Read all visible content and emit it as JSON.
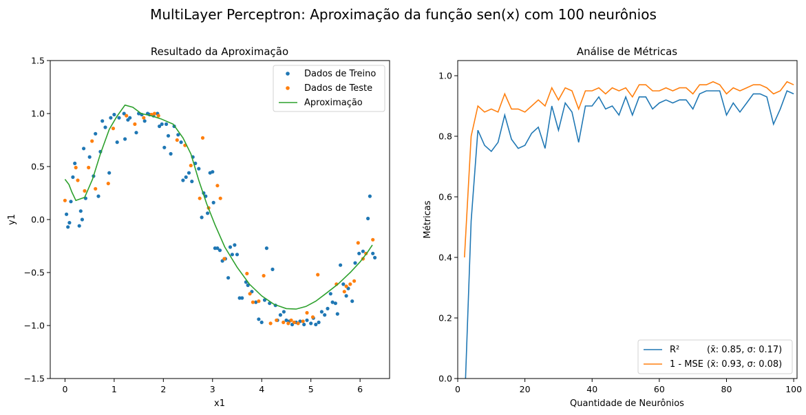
{
  "suptitle": "MultiLayer Perceptron: Aproximação da função sen(x) com 100 neurônios",
  "colors": {
    "train": "#1f77b4",
    "test": "#ff7f0e",
    "approx": "#2ca02c",
    "r2": "#1f77b4",
    "mse": "#ff7f0e"
  },
  "chart_data": [
    {
      "type": "scatter",
      "title": "Resultado da Aproximação",
      "xlabel": "x1",
      "ylabel": "y1",
      "xlim": [
        -0.3,
        6.6
      ],
      "ylim": [
        -1.5,
        1.5
      ],
      "xticks": [
        0,
        1,
        2,
        3,
        4,
        5,
        6
      ],
      "yticks": [
        -1.5,
        -1.0,
        -0.5,
        0.0,
        0.5,
        1.0,
        1.5
      ],
      "xtick_labels": [
        "0",
        "1",
        "2",
        "3",
        "4",
        "5",
        "6"
      ],
      "ytick_labels": [
        "−1.5",
        "−1.0",
        "−0.5",
        "0.0",
        "0.5",
        "1.0",
        "1.5"
      ],
      "legend_position": "top-right",
      "series": [
        {
          "name": "Dados de Treino",
          "kind": "scatter",
          "points": [
            [
              0.03,
              0.05
            ],
            [
              0.06,
              -0.07
            ],
            [
              0.09,
              -0.03
            ],
            [
              0.12,
              0.17
            ],
            [
              0.16,
              0.4
            ],
            [
              0.2,
              0.53
            ],
            [
              0.29,
              -0.06
            ],
            [
              0.32,
              0.08
            ],
            [
              0.35,
              0.0
            ],
            [
              0.38,
              0.67
            ],
            [
              0.42,
              0.2
            ],
            [
              0.5,
              0.59
            ],
            [
              0.58,
              0.41
            ],
            [
              0.62,
              0.81
            ],
            [
              0.68,
              0.22
            ],
            [
              0.72,
              0.64
            ],
            [
              0.76,
              0.93
            ],
            [
              0.82,
              0.87
            ],
            [
              0.9,
              0.44
            ],
            [
              0.93,
              0.96
            ],
            [
              1.0,
              0.99
            ],
            [
              1.06,
              0.73
            ],
            [
              1.1,
              0.96
            ],
            [
              1.2,
              1.0
            ],
            [
              1.22,
              0.76
            ],
            [
              1.28,
              0.94
            ],
            [
              1.32,
              0.96
            ],
            [
              1.45,
              0.82
            ],
            [
              1.5,
              1.0
            ],
            [
              1.56,
              0.99
            ],
            [
              1.62,
              0.93
            ],
            [
              1.68,
              1.0
            ],
            [
              1.72,
              0.99
            ],
            [
              1.8,
              0.98
            ],
            [
              1.88,
              1.0
            ],
            [
              1.92,
              0.88
            ],
            [
              1.97,
              0.9
            ],
            [
              2.02,
              0.68
            ],
            [
              2.06,
              0.9
            ],
            [
              2.1,
              0.79
            ],
            [
              2.15,
              0.62
            ],
            [
              2.22,
              0.88
            ],
            [
              2.3,
              0.8
            ],
            [
              2.36,
              0.73
            ],
            [
              2.4,
              0.37
            ],
            [
              2.46,
              0.4
            ],
            [
              2.52,
              0.44
            ],
            [
              2.58,
              0.36
            ],
            [
              2.6,
              0.59
            ],
            [
              2.65,
              0.53
            ],
            [
              2.72,
              0.48
            ],
            [
              2.78,
              0.02
            ],
            [
              2.82,
              0.25
            ],
            [
              2.86,
              0.22
            ],
            [
              2.9,
              0.06
            ],
            [
              2.95,
              0.44
            ],
            [
              3.0,
              0.45
            ],
            [
              3.02,
              0.16
            ],
            [
              3.05,
              -0.27
            ],
            [
              3.1,
              -0.27
            ],
            [
              3.15,
              -0.29
            ],
            [
              3.2,
              -0.39
            ],
            [
              3.26,
              -0.37
            ],
            [
              3.32,
              -0.55
            ],
            [
              3.36,
              -0.26
            ],
            [
              3.4,
              -0.33
            ],
            [
              3.45,
              -0.24
            ],
            [
              3.5,
              -0.33
            ],
            [
              3.55,
              -0.74
            ],
            [
              3.6,
              -0.74
            ],
            [
              3.68,
              -0.59
            ],
            [
              3.72,
              -0.62
            ],
            [
              3.8,
              -0.68
            ],
            [
              3.88,
              -0.78
            ],
            [
              3.94,
              -0.94
            ],
            [
              4.0,
              -0.97
            ],
            [
              4.06,
              -0.76
            ],
            [
              4.1,
              -0.27
            ],
            [
              4.16,
              -0.79
            ],
            [
              4.22,
              -0.47
            ],
            [
              4.28,
              -0.81
            ],
            [
              4.32,
              -0.95
            ],
            [
              4.38,
              -0.9
            ],
            [
              4.45,
              -0.87
            ],
            [
              4.5,
              -0.95
            ],
            [
              4.56,
              -0.96
            ],
            [
              4.62,
              -0.99
            ],
            [
              4.7,
              -0.97
            ],
            [
              4.78,
              -0.96
            ],
            [
              4.86,
              -0.99
            ],
            [
              4.92,
              -0.95
            ],
            [
              5.0,
              -0.98
            ],
            [
              5.05,
              -0.93
            ],
            [
              5.1,
              -0.99
            ],
            [
              5.16,
              -0.97
            ],
            [
              5.22,
              -0.87
            ],
            [
              5.28,
              -0.9
            ],
            [
              5.34,
              -0.84
            ],
            [
              5.4,
              -0.7
            ],
            [
              5.44,
              -0.78
            ],
            [
              5.5,
              -0.79
            ],
            [
              5.54,
              -0.89
            ],
            [
              5.6,
              -0.43
            ],
            [
              5.66,
              -0.61
            ],
            [
              5.72,
              -0.72
            ],
            [
              5.76,
              -0.65
            ],
            [
              5.84,
              -0.77
            ],
            [
              5.9,
              -0.41
            ],
            [
              5.98,
              -0.32
            ],
            [
              6.06,
              -0.3
            ],
            [
              6.16,
              0.01
            ],
            [
              6.2,
              0.22
            ],
            [
              6.26,
              -0.32
            ],
            [
              6.3,
              -0.36
            ]
          ]
        },
        {
          "name": "Dados de Teste",
          "kind": "scatter",
          "points": [
            [
              0.0,
              0.18
            ],
            [
              0.22,
              0.49
            ],
            [
              0.26,
              0.37
            ],
            [
              0.4,
              0.27
            ],
            [
              0.48,
              0.49
            ],
            [
              0.55,
              0.74
            ],
            [
              0.62,
              0.29
            ],
            [
              0.88,
              0.34
            ],
            [
              0.98,
              0.86
            ],
            [
              1.25,
              0.98
            ],
            [
              1.42,
              0.9
            ],
            [
              1.6,
              0.96
            ],
            [
              1.76,
              0.99
            ],
            [
              1.82,
              1.0
            ],
            [
              1.9,
              0.98
            ],
            [
              2.28,
              0.75
            ],
            [
              2.44,
              0.7
            ],
            [
              2.56,
              0.51
            ],
            [
              2.74,
              0.2
            ],
            [
              2.8,
              0.77
            ],
            [
              2.92,
              0.11
            ],
            [
              3.1,
              0.32
            ],
            [
              3.16,
              0.2
            ],
            [
              3.24,
              -0.37
            ],
            [
              3.7,
              -0.51
            ],
            [
              3.76,
              -0.7
            ],
            [
              3.82,
              -0.78
            ],
            [
              3.94,
              -0.77
            ],
            [
              4.04,
              -0.53
            ],
            [
              4.18,
              -0.98
            ],
            [
              4.3,
              -0.95
            ],
            [
              4.44,
              -0.97
            ],
            [
              4.54,
              -0.98
            ],
            [
              4.6,
              -0.95
            ],
            [
              4.66,
              -0.97
            ],
            [
              4.74,
              -0.98
            ],
            [
              4.84,
              -0.96
            ],
            [
              4.92,
              -0.88
            ],
            [
              5.04,
              -0.92
            ],
            [
              5.14,
              -0.52
            ],
            [
              5.52,
              -0.61
            ],
            [
              5.68,
              -0.68
            ],
            [
              5.72,
              -0.63
            ],
            [
              5.8,
              -0.61
            ],
            [
              5.88,
              -0.58
            ],
            [
              5.96,
              -0.22
            ],
            [
              6.06,
              -0.37
            ],
            [
              6.12,
              -0.32
            ],
            [
              6.26,
              -0.19
            ]
          ]
        },
        {
          "name": "Aproximação",
          "kind": "line",
          "points": [
            [
              0.0,
              0.38
            ],
            [
              0.08,
              0.33
            ],
            [
              0.14,
              0.26
            ],
            [
              0.22,
              0.18
            ],
            [
              0.4,
              0.21
            ],
            [
              0.56,
              0.38
            ],
            [
              0.72,
              0.62
            ],
            [
              0.9,
              0.85
            ],
            [
              1.05,
              0.97
            ],
            [
              1.22,
              1.08
            ],
            [
              1.38,
              1.06
            ],
            [
              1.55,
              1.0
            ],
            [
              1.75,
              0.98
            ],
            [
              1.95,
              0.95
            ],
            [
              2.2,
              0.9
            ],
            [
              2.4,
              0.77
            ],
            [
              2.56,
              0.62
            ],
            [
              2.72,
              0.37
            ],
            [
              2.88,
              0.15
            ],
            [
              3.05,
              -0.05
            ],
            [
              3.25,
              -0.26
            ],
            [
              3.5,
              -0.45
            ],
            [
              3.75,
              -0.61
            ],
            [
              4.0,
              -0.72
            ],
            [
              4.25,
              -0.8
            ],
            [
              4.5,
              -0.84
            ],
            [
              4.7,
              -0.845
            ],
            [
              4.9,
              -0.82
            ],
            [
              5.1,
              -0.77
            ],
            [
              5.3,
              -0.7
            ],
            [
              5.55,
              -0.61
            ],
            [
              5.8,
              -0.5
            ],
            [
              6.0,
              -0.4
            ],
            [
              6.15,
              -0.31
            ],
            [
              6.25,
              -0.24
            ]
          ]
        }
      ]
    },
    {
      "type": "line",
      "title": "Análise de Métricas",
      "xlabel": "Quantidade de Neurônios",
      "ylabel": "Métricas",
      "xlim": [
        0,
        101
      ],
      "ylim": [
        0.0,
        1.05
      ],
      "xticks": [
        0,
        20,
        40,
        60,
        80,
        100
      ],
      "yticks": [
        0.0,
        0.2,
        0.4,
        0.6,
        0.8,
        1.0
      ],
      "xtick_labels": [
        "0",
        "20",
        "40",
        "60",
        "80",
        "100"
      ],
      "ytick_labels": [
        "0.0",
        "0.2",
        "0.4",
        "0.6",
        "0.8",
        "1.0"
      ],
      "legend_position": "bottom-right",
      "x": [
        2,
        4,
        6,
        8,
        10,
        12,
        14,
        16,
        18,
        20,
        22,
        24,
        26,
        28,
        30,
        32,
        34,
        36,
        38,
        40,
        42,
        44,
        46,
        48,
        50,
        52,
        54,
        56,
        58,
        60,
        62,
        64,
        66,
        68,
        70,
        72,
        74,
        76,
        78,
        80,
        82,
        84,
        86,
        88,
        90,
        92,
        94,
        96,
        98,
        100
      ],
      "series": [
        {
          "name": "R²",
          "stats": "(x̄: 0.85, σ: 0.17)",
          "values": [
            -0.1,
            0.52,
            0.82,
            0.77,
            0.75,
            0.78,
            0.87,
            0.79,
            0.76,
            0.77,
            0.81,
            0.83,
            0.76,
            0.9,
            0.82,
            0.91,
            0.88,
            0.78,
            0.9,
            0.9,
            0.93,
            0.89,
            0.9,
            0.87,
            0.93,
            0.87,
            0.93,
            0.93,
            0.89,
            0.91,
            0.92,
            0.91,
            0.92,
            0.92,
            0.89,
            0.94,
            0.95,
            0.95,
            0.95,
            0.87,
            0.91,
            0.88,
            0.91,
            0.94,
            0.94,
            0.93,
            0.84,
            0.89,
            0.95,
            0.94
          ]
        },
        {
          "name": "1 - MSE",
          "stats": "(x̄: 0.93, σ: 0.08)",
          "values": [
            0.4,
            0.8,
            0.9,
            0.88,
            0.89,
            0.88,
            0.94,
            0.89,
            0.89,
            0.88,
            0.9,
            0.92,
            0.9,
            0.96,
            0.92,
            0.96,
            0.95,
            0.89,
            0.95,
            0.95,
            0.96,
            0.94,
            0.96,
            0.95,
            0.96,
            0.93,
            0.97,
            0.97,
            0.95,
            0.95,
            0.96,
            0.95,
            0.96,
            0.96,
            0.94,
            0.97,
            0.97,
            0.98,
            0.97,
            0.94,
            0.96,
            0.95,
            0.96,
            0.97,
            0.97,
            0.96,
            0.94,
            0.95,
            0.98,
            0.97
          ]
        }
      ]
    }
  ]
}
